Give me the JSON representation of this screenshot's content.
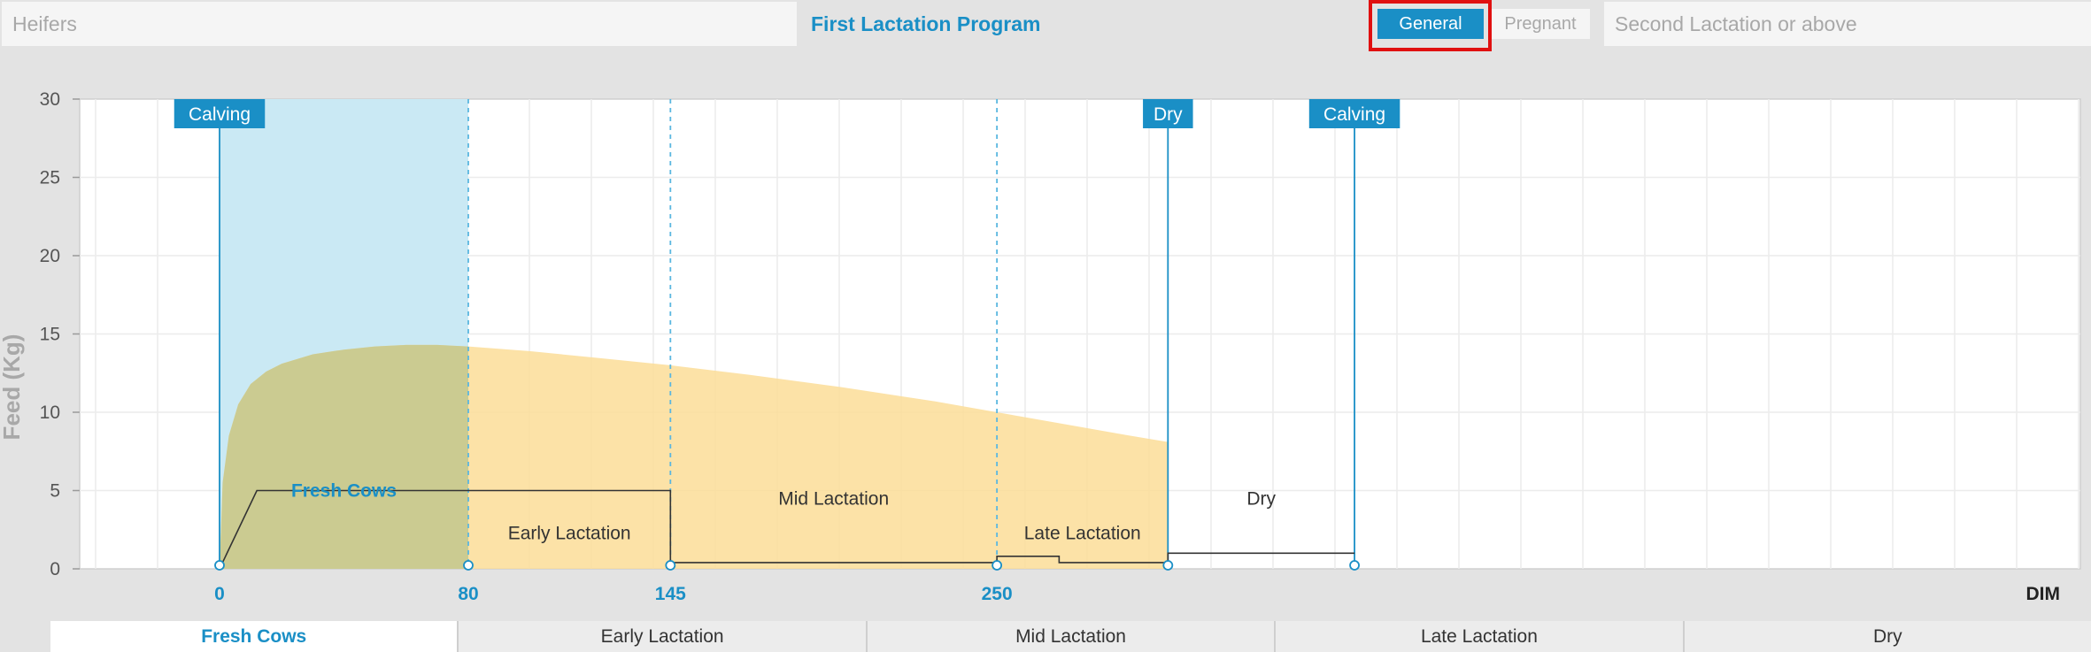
{
  "header": {
    "tabs": [
      {
        "label": "Heifers"
      },
      {
        "label": "First Lactation Program"
      },
      {
        "label": "Second Lactation or above"
      }
    ],
    "pills": [
      {
        "label": "General",
        "selected": true
      },
      {
        "label": "Pregnant",
        "selected": false
      }
    ]
  },
  "chart_data": {
    "type": "area",
    "ylabel": "Feed (Kg)",
    "xlabel": "DIM",
    "ylim": [
      0,
      30
    ],
    "yticks": [
      "0",
      "5",
      "10",
      "15",
      "20",
      "25",
      "30"
    ],
    "xticks": [
      {
        "value": 0,
        "label": "0"
      },
      {
        "value": 80,
        "label": "80"
      },
      {
        "value": 145,
        "label": "145"
      },
      {
        "value": 250,
        "label": "250"
      }
    ],
    "events": [
      {
        "label": "Calving",
        "x": 0
      },
      {
        "label": "Dry",
        "x": 305
      },
      {
        "label": "Calving",
        "x": 365
      }
    ],
    "phases": [
      {
        "label": "Fresh Cows",
        "start": 0,
        "end": 80,
        "y": 5,
        "highlighted": true
      },
      {
        "label": "Early Lactation",
        "start": 80,
        "end": 145,
        "y": 2.3
      },
      {
        "label": "Mid Lactation",
        "start": 145,
        "end": 250,
        "y": 4.5
      },
      {
        "label": "Late Lactation",
        "start": 250,
        "end": 305,
        "y": 2.3
      },
      {
        "label": "Dry",
        "start": 305,
        "end": 365,
        "y": 4.5
      }
    ],
    "milk_curve": {
      "x": [
        0,
        1,
        3,
        6,
        10,
        15,
        20,
        30,
        40,
        50,
        60,
        70,
        80,
        100,
        120,
        145,
        170,
        200,
        230,
        250,
        270,
        290,
        305
      ],
      "y": [
        0,
        5.5,
        8.5,
        10.5,
        11.8,
        12.6,
        13.1,
        13.7,
        14.0,
        14.2,
        14.3,
        14.3,
        14.2,
        13.9,
        13.5,
        13.0,
        12.4,
        11.6,
        10.7,
        10.0,
        9.3,
        8.6,
        8.1
      ]
    },
    "feed_line": {
      "x": [
        0,
        12,
        145,
        145,
        250,
        250,
        270,
        270,
        305,
        305,
        365
      ],
      "y": [
        0,
        5,
        5,
        0.4,
        0.4,
        0.8,
        0.8,
        0.4,
        0.4,
        1.0,
        1.0
      ]
    },
    "colors": {
      "milk_area": "#fbdd98",
      "fresh_highlight": "#cae9f4",
      "accent": "#1a8fc6",
      "feed_line": "#333333"
    }
  },
  "bottom_tabs": [
    {
      "label": "Fresh Cows",
      "active": true
    },
    {
      "label": "Early Lactation",
      "active": false
    },
    {
      "label": "Mid Lactation",
      "active": false
    },
    {
      "label": "Late Lactation",
      "active": false
    },
    {
      "label": "Dry",
      "active": false
    }
  ]
}
